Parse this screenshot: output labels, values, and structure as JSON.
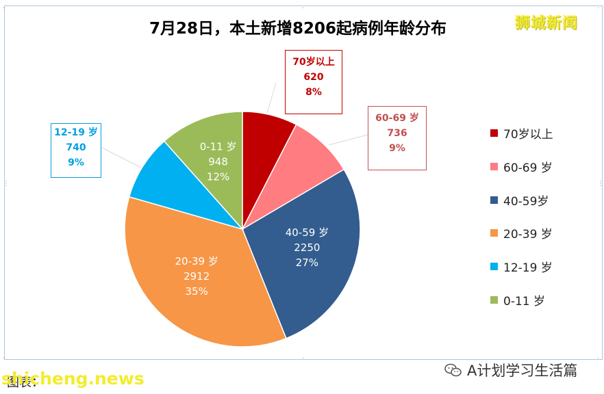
{
  "header": {
    "title": "7月28日，本土新增8206起病例年龄分布",
    "logo_text": "狮城新闻"
  },
  "chart_data": {
    "type": "pie",
    "title": "7月28日，本土新增8206起病例年龄分布",
    "slices": [
      {
        "key": "s70",
        "label": "70岁以上",
        "callout_label": "70岁以上",
        "value": 620,
        "percent": "8%",
        "color": "#c00000",
        "text_color": "#c00000"
      },
      {
        "key": "s60",
        "label": "60-69 岁",
        "callout_label": "60-69 岁",
        "value": 736,
        "percent": "9%",
        "color": "#ff7c80",
        "text_color": "#c0504d"
      },
      {
        "key": "s40",
        "label": "40-59岁",
        "callout_label": "40-59 岁",
        "value": 2250,
        "percent": "27%",
        "color": "#335c8f",
        "text_color": "#ffffff"
      },
      {
        "key": "s20",
        "label": "20-39 岁",
        "callout_label": "20-39 岁",
        "value": 2912,
        "percent": "35%",
        "color": "#f79646",
        "text_color": "#ffffff"
      },
      {
        "key": "s12",
        "label": "12-19 岁",
        "callout_label": "12-19 岁",
        "value": 740,
        "percent": "9%",
        "color": "#00b0f0",
        "text_color": "#00a0e0"
      },
      {
        "key": "s0",
        "label": "0-11 岁",
        "callout_label": "0-11 岁",
        "value": 948,
        "percent": "12%",
        "color": "#9bbb59",
        "text_color": "#ffffff"
      }
    ],
    "legend_placement": "right"
  },
  "callouts": {
    "s70": {
      "label": "70岁以上",
      "value": "620",
      "percent": "8%"
    },
    "s60": {
      "label": "60-69 岁",
      "value": "736",
      "percent": "9%"
    },
    "s12": {
      "label": "12-19 岁",
      "value": "740",
      "percent": "9%"
    }
  },
  "inner_labels": {
    "s40": {
      "label": "40-59 岁",
      "value": "2250",
      "percent": "27%"
    },
    "s20": {
      "label": "20-39 岁",
      "value": "2912",
      "percent": "35%"
    },
    "s0": {
      "label": "0-11 岁",
      "value": "948",
      "percent": "12%"
    }
  },
  "legend": [
    {
      "label": "70岁以上",
      "color": "#c00000"
    },
    {
      "label": "60-69 岁",
      "color": "#ff7c80"
    },
    {
      "label": "40-59岁",
      "color": "#335c8f"
    },
    {
      "label": "20-39 岁",
      "color": "#f79646"
    },
    {
      "label": "12-19 岁",
      "color": "#00b0f0"
    },
    {
      "label": "0-11 岁",
      "color": "#9bbb59"
    }
  ],
  "footer": {
    "source": "图表：",
    "watermark": "shicheng.news",
    "account": "A计划学习生活篇"
  }
}
